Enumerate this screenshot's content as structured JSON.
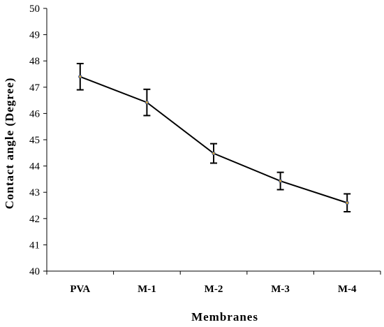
{
  "chart_data": {
    "type": "line",
    "categories": [
      "PVA",
      "M-1",
      "M-2",
      "M-3",
      "M-4"
    ],
    "series": [
      {
        "values": [
          47.4,
          46.42,
          44.48,
          43.43,
          42.6
        ],
        "error": [
          0.5,
          0.5,
          0.37,
          0.33,
          0.34
        ]
      }
    ],
    "xlabel": "Membranes",
    "ylabel": "Contact angle (Degree)",
    "ylim": [
      40,
      50
    ],
    "yticks": [
      40,
      41,
      42,
      43,
      44,
      45,
      46,
      47,
      48,
      49,
      50
    ],
    "grid": false,
    "legend": "none",
    "colors": {
      "line": "#000000",
      "marker": "#c8a040",
      "marker_edge": "#1f3d8a",
      "axis": "#000000"
    }
  }
}
